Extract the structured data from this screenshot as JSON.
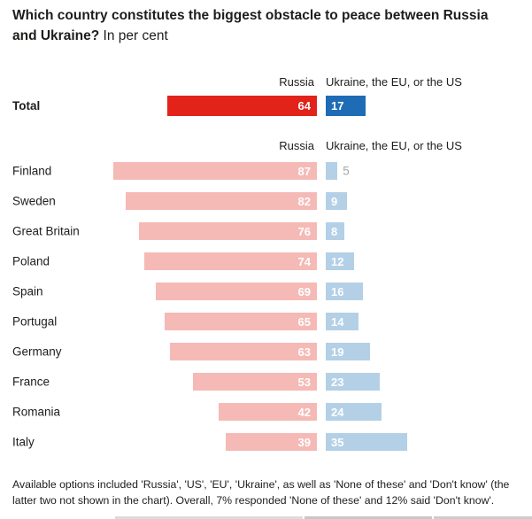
{
  "title": {
    "bold": "Which country constitutes the biggest obstacle to peace between Russia and Ukraine?",
    "suffix": "In per cent"
  },
  "columns": {
    "russia": "Russia",
    "other": "Ukraine, the EU, or the US"
  },
  "total_row": {
    "label": "Total",
    "russia_value": "64",
    "other_value": "17"
  },
  "colors": {
    "total_russia": "#e2231a",
    "total_other": "#1e6cb5",
    "country_russia": "#f5bab6",
    "country_other": "#b3d0e6",
    "outside_value_text": "#a6a6a6",
    "bar_value_text": "#ffffff",
    "text": "#1d1d1b"
  },
  "chart_data": {
    "type": "bar",
    "orientation": "horizontal",
    "title": "Which country constitutes the biggest obstacle to peace between Russia and Ukraine?",
    "subtitle": "In per cent",
    "unit": "per cent",
    "xlim": [
      0,
      100
    ],
    "grid": false,
    "legend_position": "top-as-column-headers",
    "categories": [
      "Finland",
      "Sweden",
      "Great Britain",
      "Poland",
      "Spain",
      "Portugal",
      "Germany",
      "France",
      "Romania",
      "Italy"
    ],
    "series": [
      {
        "name": "Russia",
        "values": [
          87,
          82,
          76,
          74,
          69,
          65,
          63,
          53,
          42,
          39
        ]
      },
      {
        "name": "Ukraine, the EU, or the US",
        "values": [
          5,
          9,
          8,
          12,
          16,
          14,
          19,
          23,
          24,
          35
        ]
      }
    ],
    "total": {
      "label": "Total",
      "russia": 64,
      "other": 17
    }
  },
  "footnote": "Available options included 'Russia', 'US', 'EU', 'Ukraine', as well as 'None of these' and 'Don't know' (the latter two not shown in the chart). Overall, 7% responded 'None of these' and 12% said 'Don't know'."
}
